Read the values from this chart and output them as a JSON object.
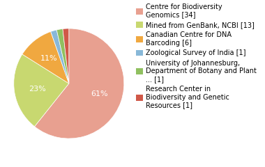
{
  "labels": [
    "Centre for Biodiversity\nGenomics [34]",
    "Mined from GenBank, NCBI [13]",
    "Canadian Centre for DNA\nBarcoding [6]",
    "Zoological Survey of India [1]",
    "University of Johannesburg,\nDepartment of Botany and Plant\n... [1]",
    "Research Center in\nBiodiversity and Genetic\nResources [1]"
  ],
  "values": [
    34,
    13,
    6,
    1,
    1,
    1
  ],
  "colors": [
    "#e8a090",
    "#c8d870",
    "#f0a840",
    "#88b8d8",
    "#90c060",
    "#d05848"
  ],
  "legend_fontsize": 7.0,
  "pct_fontsize": 8,
  "pct_color": "white"
}
